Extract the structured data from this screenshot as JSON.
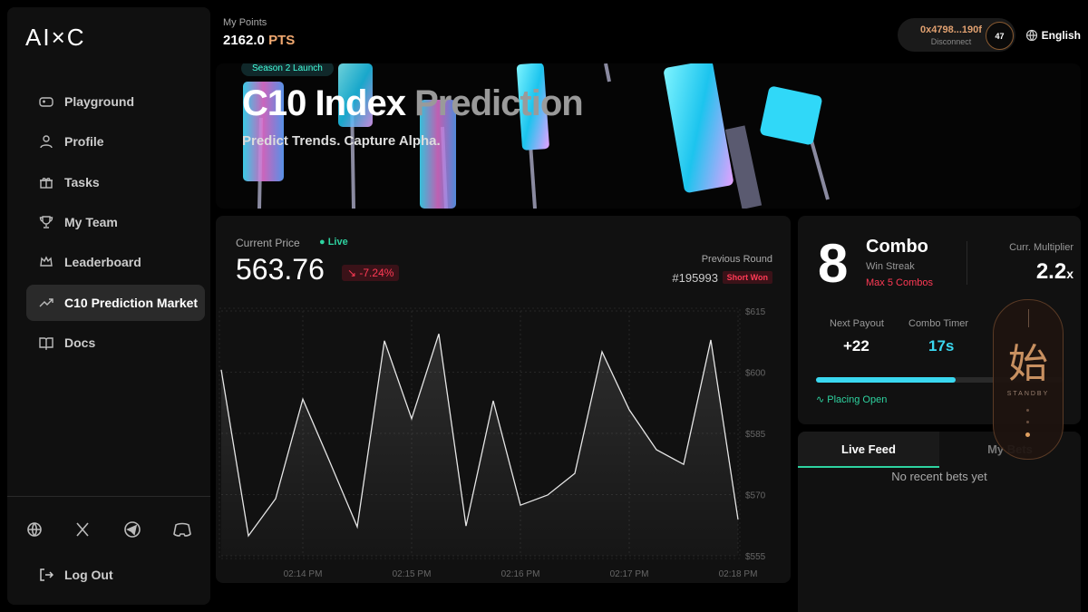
{
  "sidebar": {
    "logo": "AI×C",
    "nav": [
      "Playground",
      "Profile",
      "Tasks",
      "My Team",
      "Leaderboard",
      "C10 Prediction Market",
      "Docs"
    ],
    "logout": "Log Out"
  },
  "header": {
    "points_label": "My Points",
    "points_value": "2162.0",
    "points_unit": "PTS",
    "wallet": "0x4798...190f",
    "disconnect": "Disconnect",
    "level": "47",
    "language": "English"
  },
  "banner": {
    "tag": "Season 2 Launch",
    "title_a": "C10 Index",
    "title_b": "Prediction",
    "subtitle": "Predict Trends. Capture Alpha."
  },
  "price_panel": {
    "label": "Current Price",
    "live": "Live",
    "price": "563.76",
    "change": "-7.24%",
    "previous_label": "Previous Round",
    "round": "#195993",
    "result": "Short Won"
  },
  "chart_data": {
    "type": "line",
    "categories": [
      null,
      null,
      null,
      "02:14 PM",
      null,
      null,
      null,
      "02:15 PM",
      null,
      null,
      null,
      "02:16 PM",
      null,
      null,
      null,
      "02:17 PM",
      null,
      null,
      null,
      "02:18 PM"
    ],
    "values": [
      600.6,
      559.9,
      569.0,
      593.4,
      577.9,
      562.1,
      607.7,
      588.6,
      609.4,
      562.3,
      593.0,
      567.4,
      569.9,
      575.2,
      605.0,
      590.8,
      581.0,
      577.4,
      607.9,
      563.9
    ],
    "color": "#e6e6e6",
    "ylim": [
      555,
      615
    ],
    "yticks": [
      {
        "value": 615,
        "label": "$615"
      },
      {
        "value": 600,
        "label": "$600"
      },
      {
        "value": 585,
        "label": "$585"
      },
      {
        "value": 570,
        "label": "$570"
      },
      {
        "value": 555,
        "label": "$555"
      }
    ],
    "grid": true
  },
  "combo_panel": {
    "streak": "8",
    "combo": "Combo",
    "win_streak": "Win Streak",
    "max": "Max 5 Combos",
    "multiplier_label": "Curr. Multiplier",
    "multiplier": "2.2",
    "multiplier_unit": "x",
    "payout_label": "Next Payout",
    "payout": "+22",
    "timer_label": "Combo Timer",
    "timer": "17s",
    "status": "Placing Open"
  },
  "feed": {
    "tabs": [
      "Live Feed",
      "My Bets"
    ],
    "empty": "No recent bets yet"
  },
  "overlay": {
    "glyph": "始",
    "state": "STANDBY"
  }
}
